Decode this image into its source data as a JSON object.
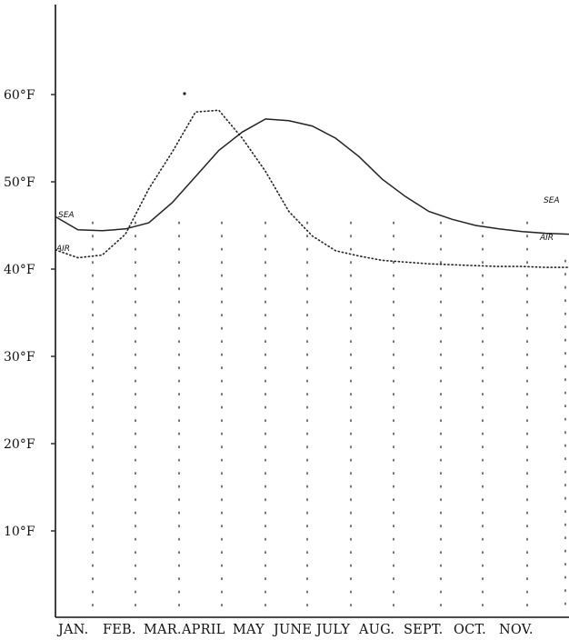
{
  "chart_data": {
    "type": "line",
    "y_ticks": [
      "60°F",
      "50°F",
      "40°F",
      "30°F",
      "20°F",
      "10°F"
    ],
    "y_tick_values": [
      60,
      50,
      40,
      30,
      20,
      10
    ],
    "ylim": [
      0,
      70
    ],
    "categories": [
      "Jan.",
      "Feb.",
      "Mar.",
      "April",
      "May",
      "June",
      "July",
      "Aug.",
      "Sept.",
      "Oct.",
      "Nov."
    ],
    "month_labels": [
      "Jan.",
      "Feb.",
      "Mar.",
      "April",
      "May",
      "June",
      "July",
      "Aug.",
      "Sept.",
      "Oct.",
      "Nov."
    ],
    "series": [
      {
        "name": "SEA",
        "style": "solid",
        "x": [
          0.0,
          0.48,
          1.0,
          1.5,
          2.0,
          2.5,
          3.0,
          3.5,
          4.0,
          4.5,
          5.0,
          5.5,
          6.0,
          6.5,
          7.0,
          7.5,
          8.0,
          8.5,
          9.0,
          9.5,
          10.0,
          10.5,
          11.0
        ],
        "y": [
          46.0,
          44.5,
          44.4,
          44.6,
          45.3,
          47.6,
          50.6,
          53.6,
          55.7,
          57.2,
          57.0,
          56.4,
          55.0,
          52.9,
          50.3,
          48.3,
          46.6,
          45.7,
          45.0,
          44.6,
          44.3,
          44.1,
          44.0
        ]
      },
      {
        "name": "AIR",
        "style": "dotted",
        "x": [
          0.0,
          0.48,
          1.0,
          1.5,
          2.0,
          2.5,
          3.0,
          3.5,
          4.0,
          4.5,
          5.0,
          5.5,
          6.0,
          6.5,
          7.0,
          7.5,
          8.0,
          8.5,
          9.0,
          9.5,
          10.0,
          10.5,
          11.0
        ],
        "y": [
          42.2,
          41.3,
          41.6,
          44.0,
          49.2,
          53.4,
          58.0,
          58.2,
          55.0,
          51.2,
          46.6,
          43.8,
          42.1,
          41.5,
          41.0,
          40.8,
          40.6,
          40.5,
          40.4,
          40.3,
          40.3,
          40.2,
          40.2
        ]
      }
    ],
    "series_labels": [
      "SEA",
      "AIR"
    ],
    "extra_marks": [
      {
        "x": 3.1,
        "y": 60
      }
    ],
    "grid": "vertical dotted lines at each month",
    "colors": {
      "ink": "#222222",
      "paper": "#ffffff"
    }
  }
}
